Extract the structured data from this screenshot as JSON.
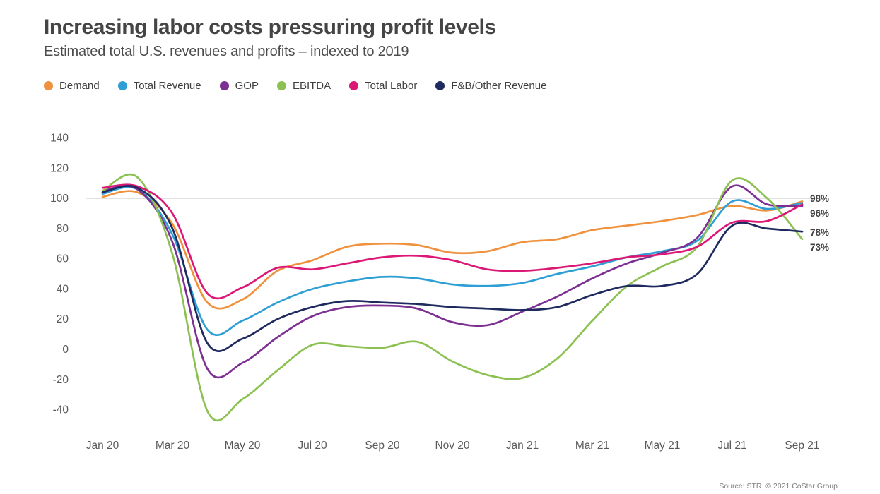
{
  "header": {
    "title": "Increasing labor costs pressuring profit levels",
    "subtitle": "Estimated total U.S. revenues and profits – indexed to 2019"
  },
  "source": "Source: STR. © 2021 CoStar Group",
  "colors": {
    "title_text": "#454545",
    "axis_text": "#58595b",
    "gridline": "#d9d9d9",
    "end_label_text": "#414042"
  },
  "chart_data": {
    "type": "line",
    "x": [
      "Jan 20",
      "Feb 20",
      "Mar 20",
      "Apr 20",
      "May 20",
      "Jun 20",
      "Jul 20",
      "Aug 20",
      "Sep 20",
      "Oct 20",
      "Nov 20",
      "Dec 20",
      "Jan 21",
      "Feb 21",
      "Mar 21",
      "Apr 21",
      "May 21",
      "Jun 21",
      "Jul 21",
      "Aug 21",
      "Sep 21"
    ],
    "x_tick_labels": [
      "Jan 20",
      "Mar 20",
      "May 20",
      "Jul 20",
      "Sep 20",
      "Nov 20",
      "Jan 21",
      "Mar 21",
      "May 21",
      "Jul 21",
      "Sep 21"
    ],
    "y_ticks": [
      140,
      120,
      100,
      80,
      60,
      40,
      20,
      0,
      -20,
      -40
    ],
    "ylim": [
      -40,
      140
    ],
    "gridline_at": 100,
    "grid": "only-at-100",
    "legend_position": "top-left",
    "series": [
      {
        "name": "Demand",
        "color": "#f0913d",
        "values": [
          101,
          104,
          83,
          31,
          33,
          52,
          59,
          68,
          70,
          69,
          64,
          65,
          71,
          73,
          79,
          82,
          85,
          89,
          95,
          92,
          98
        ]
      },
      {
        "name": "Total Revenue",
        "color": "#2e9fd4",
        "values": [
          103,
          106,
          76,
          13,
          19,
          31,
          40,
          45,
          48,
          47,
          43,
          42,
          44,
          50,
          55,
          61,
          65,
          72,
          98,
          93,
          97
        ]
      },
      {
        "name": "GOP",
        "color": "#7c3092",
        "values": [
          105,
          106,
          71,
          -13,
          -9,
          8,
          22,
          28,
          29,
          27,
          18,
          16,
          25,
          35,
          47,
          57,
          64,
          74,
          108,
          96,
          95
        ]
      },
      {
        "name": "EBITDA",
        "color": "#8cc152",
        "values": [
          105,
          114,
          63,
          -41,
          -33,
          -14,
          3,
          2,
          1,
          5,
          -8,
          -17,
          -19,
          -6,
          19,
          42,
          55,
          68,
          112,
          100,
          73
        ]
      },
      {
        "name": "Total Labor",
        "color": "#dc1876",
        "values": [
          107,
          108,
          90,
          37,
          41,
          54,
          53,
          57,
          61,
          62,
          59,
          53,
          52,
          54,
          57,
          61,
          63,
          68,
          84,
          85,
          96
        ]
      },
      {
        "name": "F&B/Other Revenue",
        "color": "#1f2a5e",
        "values": [
          104,
          107,
          80,
          4,
          7,
          20,
          28,
          32,
          31,
          30,
          28,
          27,
          26,
          28,
          36,
          42,
          42,
          50,
          82,
          80,
          78
        ]
      }
    ],
    "end_labels": [
      "98%",
      "96%",
      "78%",
      "73%"
    ]
  }
}
